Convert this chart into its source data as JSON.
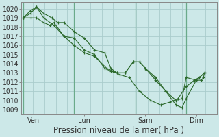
{
  "title": "Pression niveau de la mer( hPa )",
  "ylabel_values": [
    1009,
    1010,
    1011,
    1012,
    1013,
    1014,
    1015,
    1016,
    1017,
    1018,
    1019,
    1020
  ],
  "ylim": [
    1008.5,
    1020.7
  ],
  "background_color": "#cce8e8",
  "grid_color": "#aacccc",
  "line_color": "#2d6a2d",
  "marker_color": "#2d6a2d",
  "xtick_labels": [
    "Ven",
    "Lun",
    "Sam",
    "Dim"
  ],
  "xtick_positions": [
    0.5,
    3.0,
    6.0,
    8.5
  ],
  "vline_positions": [
    0.0,
    2.5,
    5.5,
    8.0
  ],
  "series_x": [
    [
      0.0,
      0.35,
      0.65,
      1.0,
      1.5,
      2.0,
      2.5,
      3.0,
      3.5,
      4.1,
      4.4,
      4.75,
      5.2,
      5.7,
      6.25,
      6.75,
      7.2,
      7.6,
      8.0,
      8.4,
      8.65,
      8.9
    ],
    [
      0.0,
      0.35,
      0.65,
      1.0,
      1.4,
      1.7,
      2.0,
      2.5,
      3.0,
      3.5,
      4.0,
      4.3,
      4.6,
      5.0,
      5.4,
      5.7,
      6.0,
      6.5,
      7.0,
      7.5,
      7.8,
      8.0,
      8.5,
      8.9
    ],
    [
      0.0,
      0.35,
      0.65,
      1.0,
      1.3,
      1.5,
      2.0,
      2.5,
      3.0,
      3.5,
      4.0,
      4.3,
      4.6,
      5.0,
      5.4,
      5.7,
      6.0,
      6.5,
      7.0,
      7.5,
      7.8,
      8.0,
      8.5,
      8.75,
      8.85,
      8.9
    ]
  ],
  "series_y": [
    [
      1019.0,
      1019.5,
      1020.2,
      1019.0,
      1018.2,
      1017.0,
      1016.0,
      1015.2,
      1014.8,
      1013.5,
      1013.2,
      1012.8,
      1012.5,
      1011.0,
      1010.0,
      1009.5,
      1009.8,
      1010.2,
      1011.5,
      1012.2,
      1012.5,
      1013.0
    ],
    [
      1019.0,
      1019.8,
      1020.2,
      1019.5,
      1019.0,
      1018.5,
      1018.5,
      1017.5,
      1016.8,
      1015.5,
      1015.2,
      1013.5,
      1013.0,
      1013.0,
      1014.2,
      1014.2,
      1013.5,
      1012.2,
      1011.0,
      1010.0,
      1010.2,
      1012.5,
      1012.2,
      1013.0
    ],
    [
      1019.0,
      1019.0,
      1019.0,
      1018.5,
      1018.2,
      1018.5,
      1017.0,
      1016.8,
      1015.5,
      1015.0,
      1013.5,
      1013.2,
      1013.0,
      1013.0,
      1014.2,
      1014.2,
      1013.5,
      1012.5,
      1011.0,
      1009.5,
      1009.2,
      1010.2,
      1012.2,
      1012.2,
      1012.5,
      1013.0
    ]
  ],
  "xlim": [
    -0.1,
    9.5
  ],
  "title_fontsize": 8.5,
  "tick_fontsize": 7.0
}
